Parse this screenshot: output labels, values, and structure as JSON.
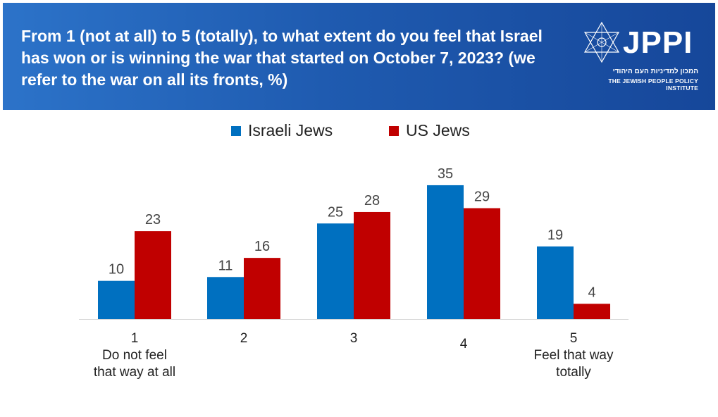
{
  "header": {
    "title": "From 1 (not at all) to 5 (totally), to what extent do you feel that Israel has won or is winning the war that started on October 7, 2023? (we refer to the war on all its fronts, %)",
    "logo_text": "JPPI",
    "logo_subtitle_hebrew": "המכון למדיניות העם היהודי",
    "logo_subtitle_english": "THE JEWISH PEOPLE POLICY INSTITUTE"
  },
  "colors": {
    "header_bg": "#1f5bb0",
    "israeli": "#0070c0",
    "us": "#c00000"
  },
  "chart_data": {
    "type": "bar",
    "title": "From 1 (not at all) to 5 (totally), to what extent do you feel that Israel has won or is winning the war that started on October 7, 2023? (we refer to the war on all its fronts, %)",
    "categories": [
      "1",
      "2",
      "3",
      "4",
      "5"
    ],
    "category_sublabels": [
      "Do not feel that way at all",
      "",
      "",
      "",
      "Feel that way totally"
    ],
    "series": [
      {
        "name": "Israeli Jews",
        "values": [
          10,
          11,
          25,
          35,
          19
        ],
        "color": "#0070c0"
      },
      {
        "name": "US Jews",
        "values": [
          23,
          16,
          28,
          29,
          4
        ],
        "color": "#c00000"
      }
    ],
    "ylim": [
      0,
      35
    ],
    "grid": false,
    "legend_position": "top-center",
    "data_labels": true
  }
}
